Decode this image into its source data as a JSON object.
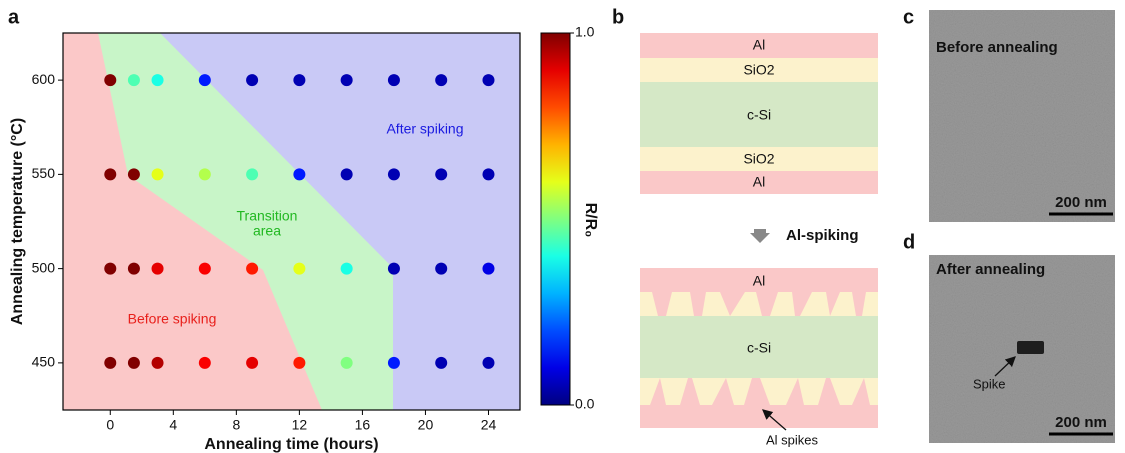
{
  "chart_data": {
    "type": "scatter",
    "panel_label": "a",
    "x_label": "Annealing time (hours)",
    "y_label": "Annealing temperature (°C)",
    "x": [
      0,
      1.5,
      3,
      6,
      9,
      12,
      15,
      18,
      21,
      24,
      0,
      1.5,
      3,
      6,
      9,
      12,
      15,
      18,
      21,
      24,
      0,
      1.5,
      3,
      6,
      9,
      12,
      15,
      18,
      21,
      24,
      0,
      1.5,
      3,
      6,
      9,
      12,
      15,
      18,
      21,
      24
    ],
    "y": [
      600,
      600,
      600,
      600,
      600,
      600,
      600,
      600,
      600,
      600,
      550,
      550,
      550,
      550,
      550,
      550,
      550,
      550,
      550,
      550,
      500,
      500,
      500,
      500,
      500,
      500,
      500,
      500,
      500,
      500,
      450,
      450,
      450,
      450,
      450,
      450,
      450,
      450,
      450,
      450
    ],
    "color_values": [
      1.0,
      0.45,
      0.4,
      0.15,
      0.05,
      0.05,
      0.05,
      0.05,
      0.05,
      0.05,
      1.0,
      1.0,
      0.6,
      0.55,
      0.45,
      0.15,
      0.05,
      0.05,
      0.05,
      0.05,
      1.0,
      1.0,
      0.9,
      0.88,
      0.85,
      0.6,
      0.4,
      0.05,
      0.05,
      0.1,
      1.0,
      1.0,
      0.95,
      0.88,
      0.9,
      0.85,
      0.5,
      0.15,
      0.05,
      0.05
    ],
    "colormap": "jet",
    "colorbar_label": "R/R₀",
    "colorbar_lim": [
      0,
      1
    ],
    "colorbar_ticks": [
      {
        "value": 0,
        "label": "0.0"
      },
      {
        "value": 1,
        "label": "1.0"
      }
    ],
    "xlim": [
      -3,
      26
    ],
    "ylim": [
      425,
      625
    ],
    "xticks": [
      0,
      4,
      8,
      12,
      16,
      20,
      24
    ],
    "yticks": [
      450,
      500,
      550,
      600
    ],
    "annotations": [
      {
        "lines": [
          "After spiking"
        ],
        "color": "#1a1ae0"
      },
      {
        "lines": [
          "Transition",
          "area"
        ],
        "color": "#22b822"
      },
      {
        "lines": [
          "Before spiking"
        ],
        "color": "#e8201c"
      }
    ]
  },
  "panel_b": {
    "label": "b",
    "top_stack": [
      "Al",
      "SiO2",
      "c-Si",
      "SiO2",
      "Al"
    ],
    "process": "Al-spiking",
    "bottom_stack": [
      "Al",
      "c-Si"
    ],
    "callout": "Al spikes"
  },
  "panel_c": {
    "label": "c",
    "caption": "Before annealing",
    "scale_bar": "200 nm"
  },
  "panel_d": {
    "label": "d",
    "caption": "After annealing",
    "callout": "Spike",
    "scale_bar": "200 nm"
  }
}
